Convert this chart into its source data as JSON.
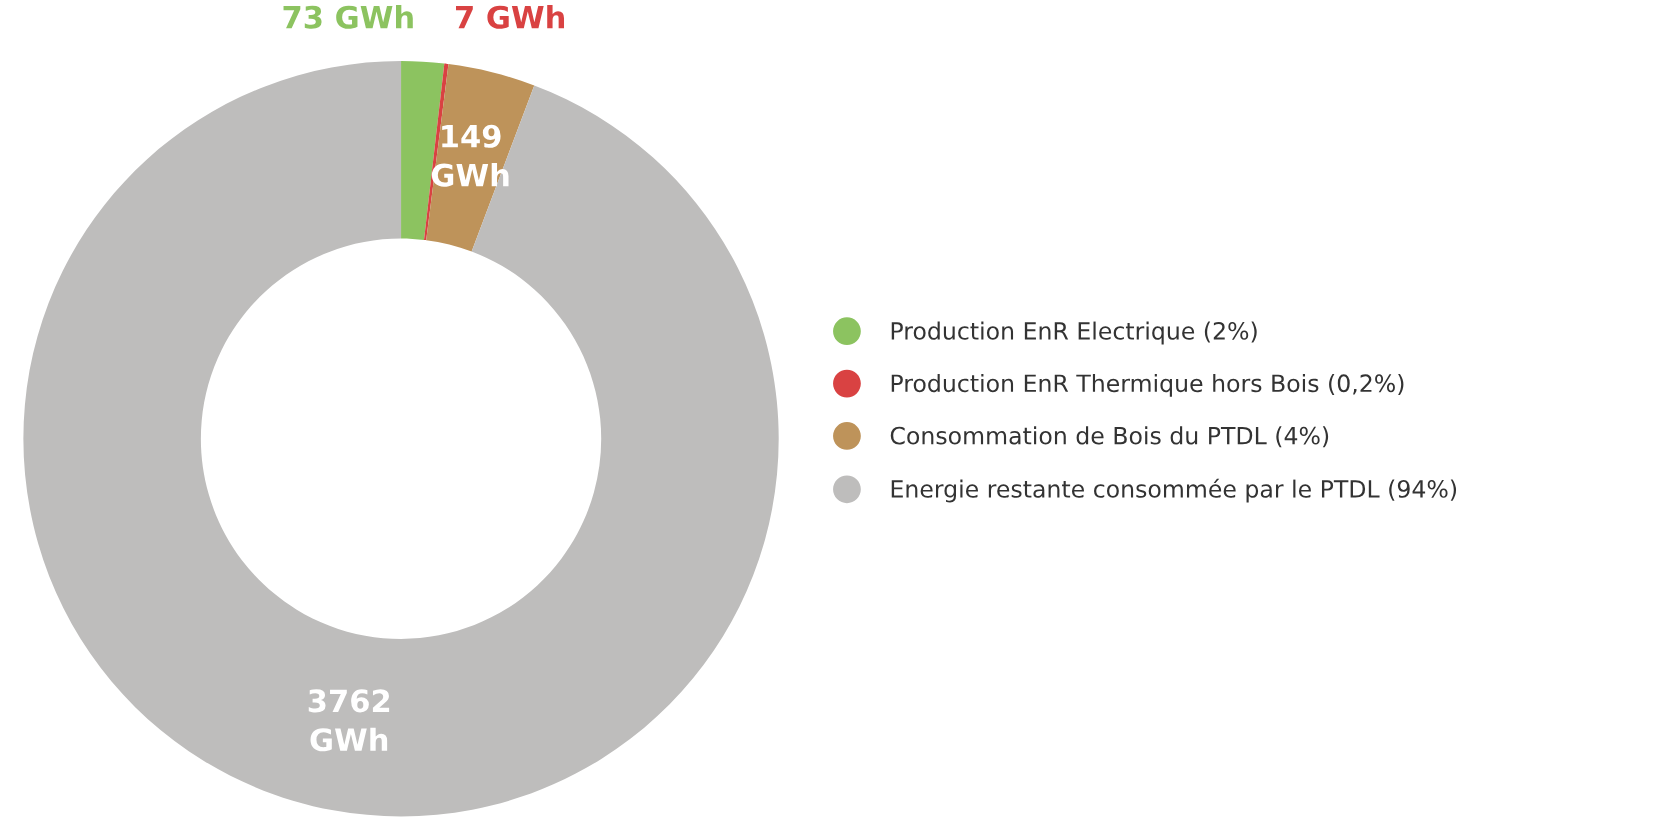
{
  "chart_data": {
    "type": "donut",
    "categories": [
      "Production EnR Electrique (2%)",
      "Production EnR Thermique hors Bois (0,2%)",
      "Consommation de Bois du PTDL (4%)",
      "Energie restante consommée par le PTDL (94%)"
    ],
    "values": [
      73,
      7,
      149,
      3762
    ],
    "colors": [
      "#8cc360",
      "#d94242",
      "#be935a",
      "#bebdbc"
    ],
    "value_labels": [
      "73 GWh",
      "7 GWh",
      "149\nGWh",
      "3762\nGWh"
    ],
    "legend": "right"
  }
}
